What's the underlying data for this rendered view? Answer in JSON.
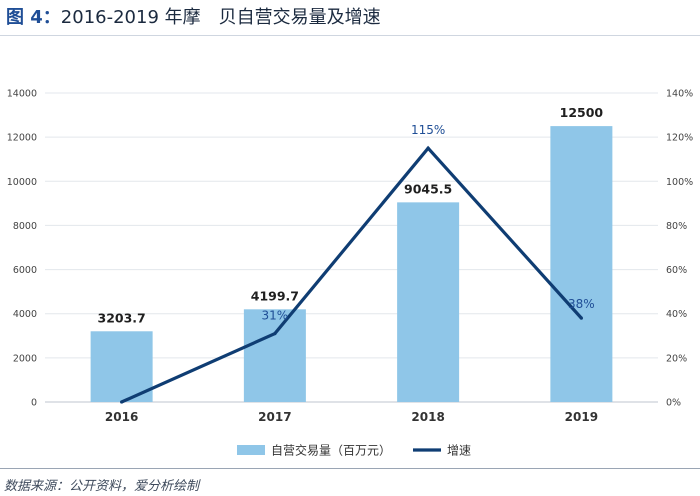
{
  "header": {
    "title_prefix": "图 4：",
    "title_main": "2016-2019 年摩　贝自营交易量及增速"
  },
  "chart_data": {
    "type": "bar",
    "title": "2016-2019 年摩　贝自营交易量及增速",
    "categories": [
      "2016",
      "2017",
      "2018",
      "2019"
    ],
    "series": [
      {
        "name": "自营交易量（百万元）",
        "type": "bar",
        "axis": "left",
        "color": "#8fc6e8",
        "values": [
          3203.7,
          4199.7,
          9045.5,
          12500
        ],
        "labels": [
          "3203.7",
          "4199.7",
          "9045.5",
          "12500"
        ]
      },
      {
        "name": "增速",
        "type": "line",
        "axis": "right",
        "color": "#0f3d73",
        "values": [
          0,
          31,
          115,
          38
        ],
        "labels": [
          "",
          "31%",
          "115%",
          "38%"
        ]
      }
    ],
    "left_axis": {
      "ylim": [
        0,
        14000
      ],
      "ticks": [
        0,
        2000,
        4000,
        6000,
        8000,
        10000,
        12000,
        14000
      ],
      "tick_labels": [
        "0",
        "2000",
        "4000",
        "6000",
        "8000",
        "10000",
        "12000",
        "14000"
      ]
    },
    "right_axis": {
      "ylim": [
        0,
        140
      ],
      "ticks": [
        0,
        20,
        40,
        60,
        80,
        100,
        120,
        140
      ],
      "tick_labels": [
        "0%",
        "20%",
        "40%",
        "60%",
        "80%",
        "100%",
        "120%",
        "140%"
      ]
    },
    "grid": true,
    "legend_position": "bottom"
  },
  "footer": {
    "source": "数据来源：公开资料，爱分析绘制"
  }
}
